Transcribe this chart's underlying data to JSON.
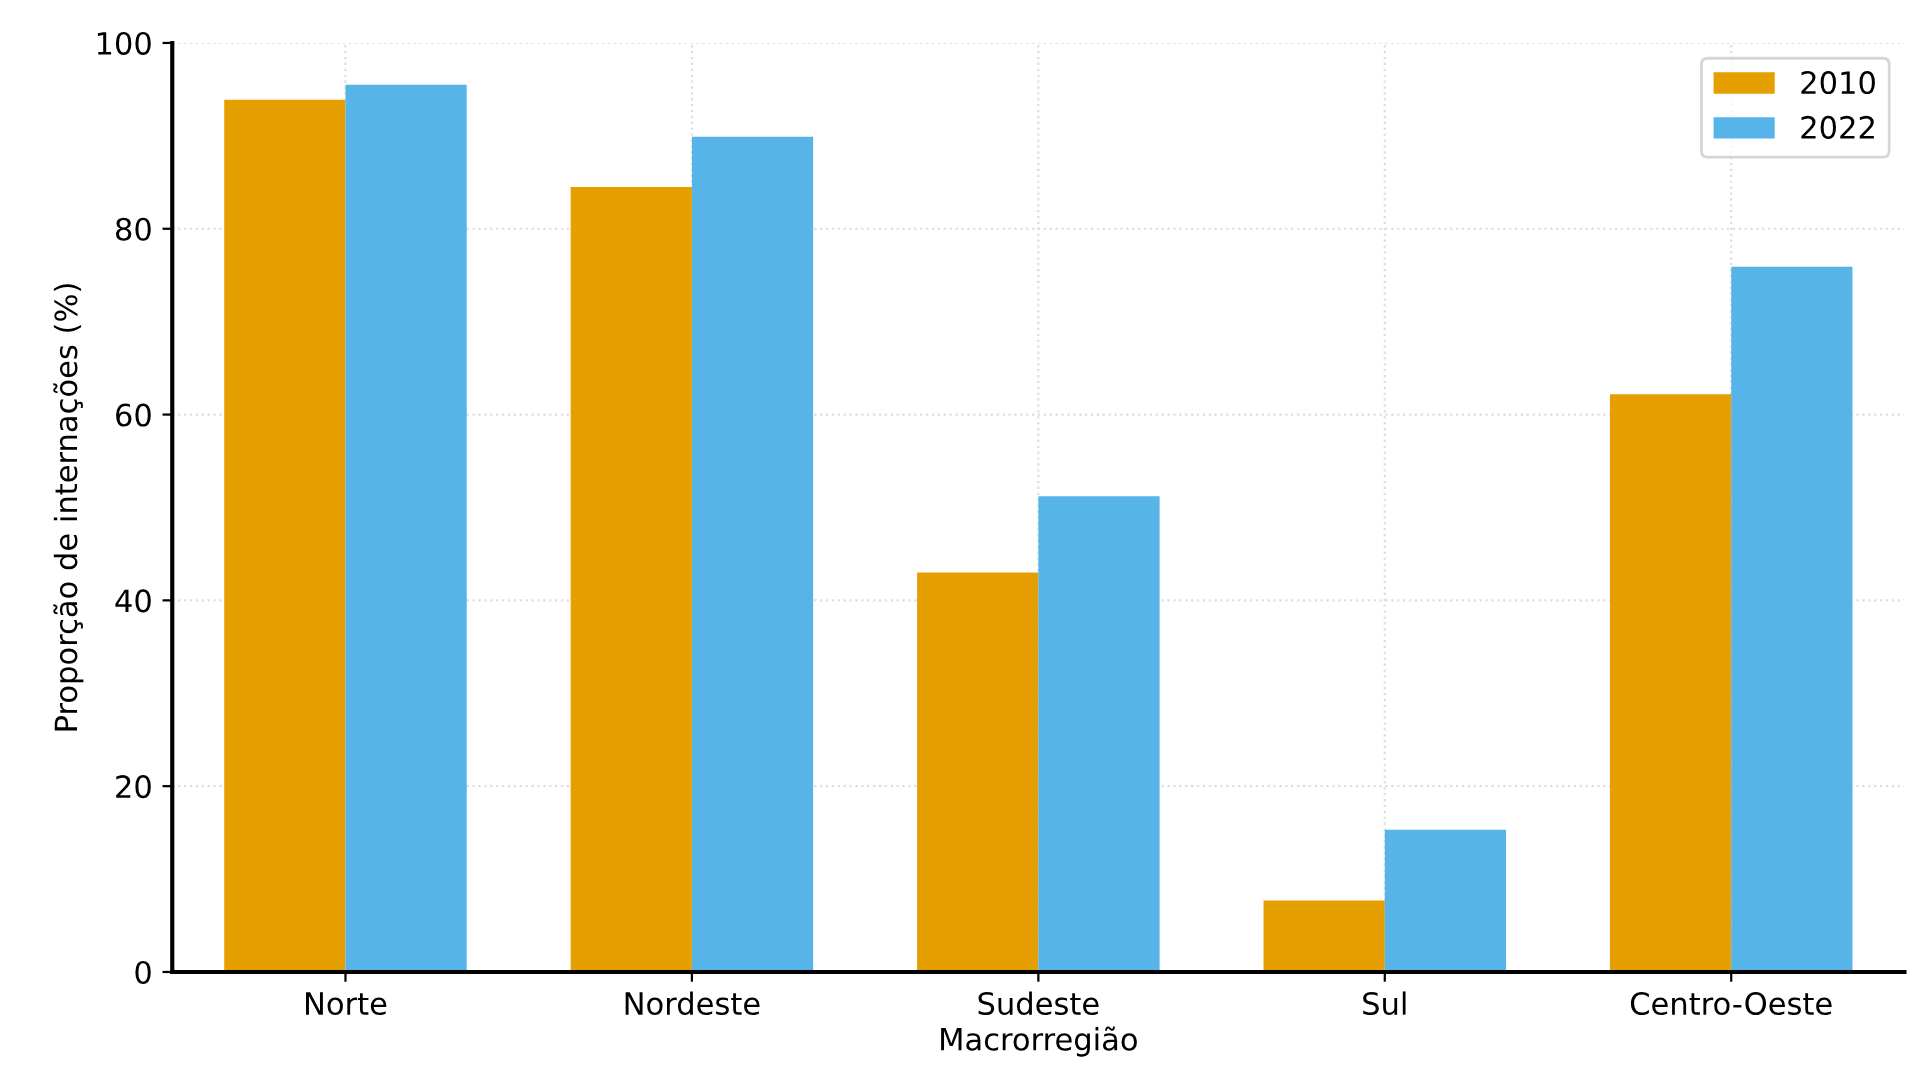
{
  "chart_data": {
    "type": "bar",
    "xlabel": "Macrorregião",
    "ylabel": "Proporção de internações (%)",
    "categories": [
      "Norte",
      "Nordeste",
      "Sudeste",
      "Sul",
      "Centro-Oeste"
    ],
    "series": [
      {
        "name": "2010",
        "color": "#e69f00",
        "values": [
          93.9,
          84.5,
          43.0,
          7.7,
          62.2
        ]
      },
      {
        "name": "2022",
        "color": "#56b4e9",
        "values": [
          95.5,
          89.9,
          51.2,
          15.3,
          75.9
        ]
      }
    ],
    "ylim": [
      0,
      100
    ],
    "yticks": [
      0,
      20,
      40,
      60,
      80,
      100
    ],
    "grid": true,
    "legend": "top right"
  }
}
